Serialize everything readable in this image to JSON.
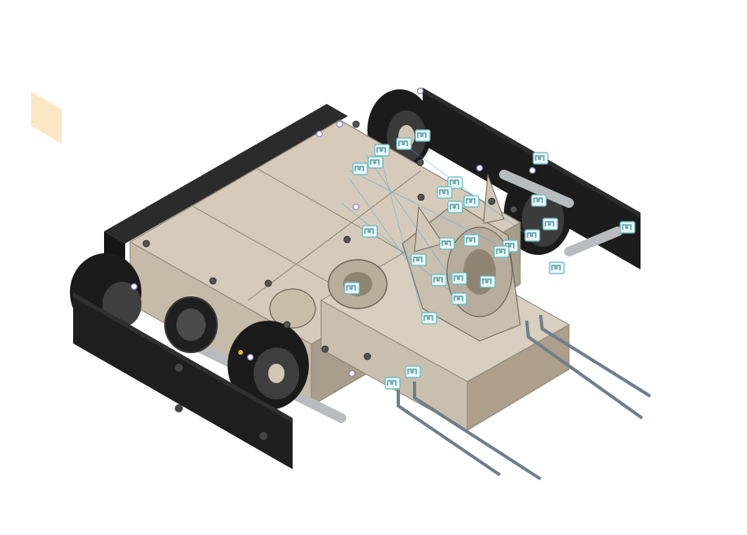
{
  "viewport": {
    "background": "#ffffff",
    "colors": {
      "chassis_black": "#1e1e1e",
      "housing_light": "#d6cbbb",
      "housing_mid": "#b7ab99",
      "housing_dark": "#8e8373",
      "wheel_black": "#1a1a1a",
      "wheel_grey": "#444444",
      "axle_grey": "#bfc2c4",
      "plane_orange": "#f6c26b",
      "joint_teal": "#7fd3da",
      "link_blue": "#4fa9d0",
      "fork_steel": "#6f7f8a"
    },
    "model": {
      "name": "robot-chassis-assembly",
      "wheels": 4,
      "forks": 2
    },
    "icons": [
      "construction-plane-icon",
      "joint-icon",
      "component-origin-icon"
    ]
  }
}
